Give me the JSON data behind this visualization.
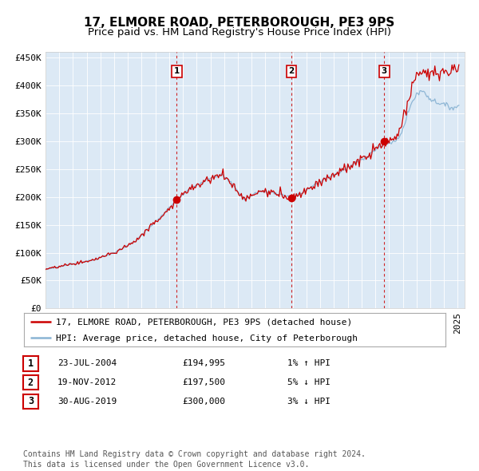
{
  "title": "17, ELMORE ROAD, PETERBOROUGH, PE3 9PS",
  "subtitle": "Price paid vs. HM Land Registry's House Price Index (HPI)",
  "ylim": [
    0,
    460000
  ],
  "yticks": [
    0,
    50000,
    100000,
    150000,
    200000,
    250000,
    300000,
    350000,
    400000,
    450000
  ],
  "ytick_labels": [
    "£0",
    "£50K",
    "£100K",
    "£150K",
    "£200K",
    "£250K",
    "£300K",
    "£350K",
    "£400K",
    "£450K"
  ],
  "xlim_start": 1995,
  "xlim_end": 2025.5,
  "background_color": "#dce9f5",
  "hpi_color": "#8ab4d4",
  "price_color": "#cc0000",
  "sale_marker_color": "#cc0000",
  "dashed_line_color": "#cc0000",
  "transactions": [
    {
      "label": "1",
      "date_num": 2004.55,
      "price": 194995
    },
    {
      "label": "2",
      "date_num": 2012.88,
      "price": 197500
    },
    {
      "label": "3",
      "date_num": 2019.65,
      "price": 300000
    }
  ],
  "legend_entries": [
    "17, ELMORE ROAD, PETERBOROUGH, PE3 9PS (detached house)",
    "HPI: Average price, detached house, City of Peterborough"
  ],
  "table_rows": [
    {
      "num": "1",
      "date": "23-JUL-2004",
      "price": "£194,995",
      "hpi": "1% ↑ HPI"
    },
    {
      "num": "2",
      "date": "19-NOV-2012",
      "price": "£197,500",
      "hpi": "5% ↓ HPI"
    },
    {
      "num": "3",
      "date": "30-AUG-2019",
      "price": "£300,000",
      "hpi": "3% ↓ HPI"
    }
  ],
  "footer": "Contains HM Land Registry data © Crown copyright and database right 2024.\nThis data is licensed under the Open Government Licence v3.0.",
  "title_fontsize": 11,
  "subtitle_fontsize": 9.5,
  "tick_fontsize": 8,
  "legend_fontsize": 8,
  "table_fontsize": 8,
  "footer_fontsize": 7
}
